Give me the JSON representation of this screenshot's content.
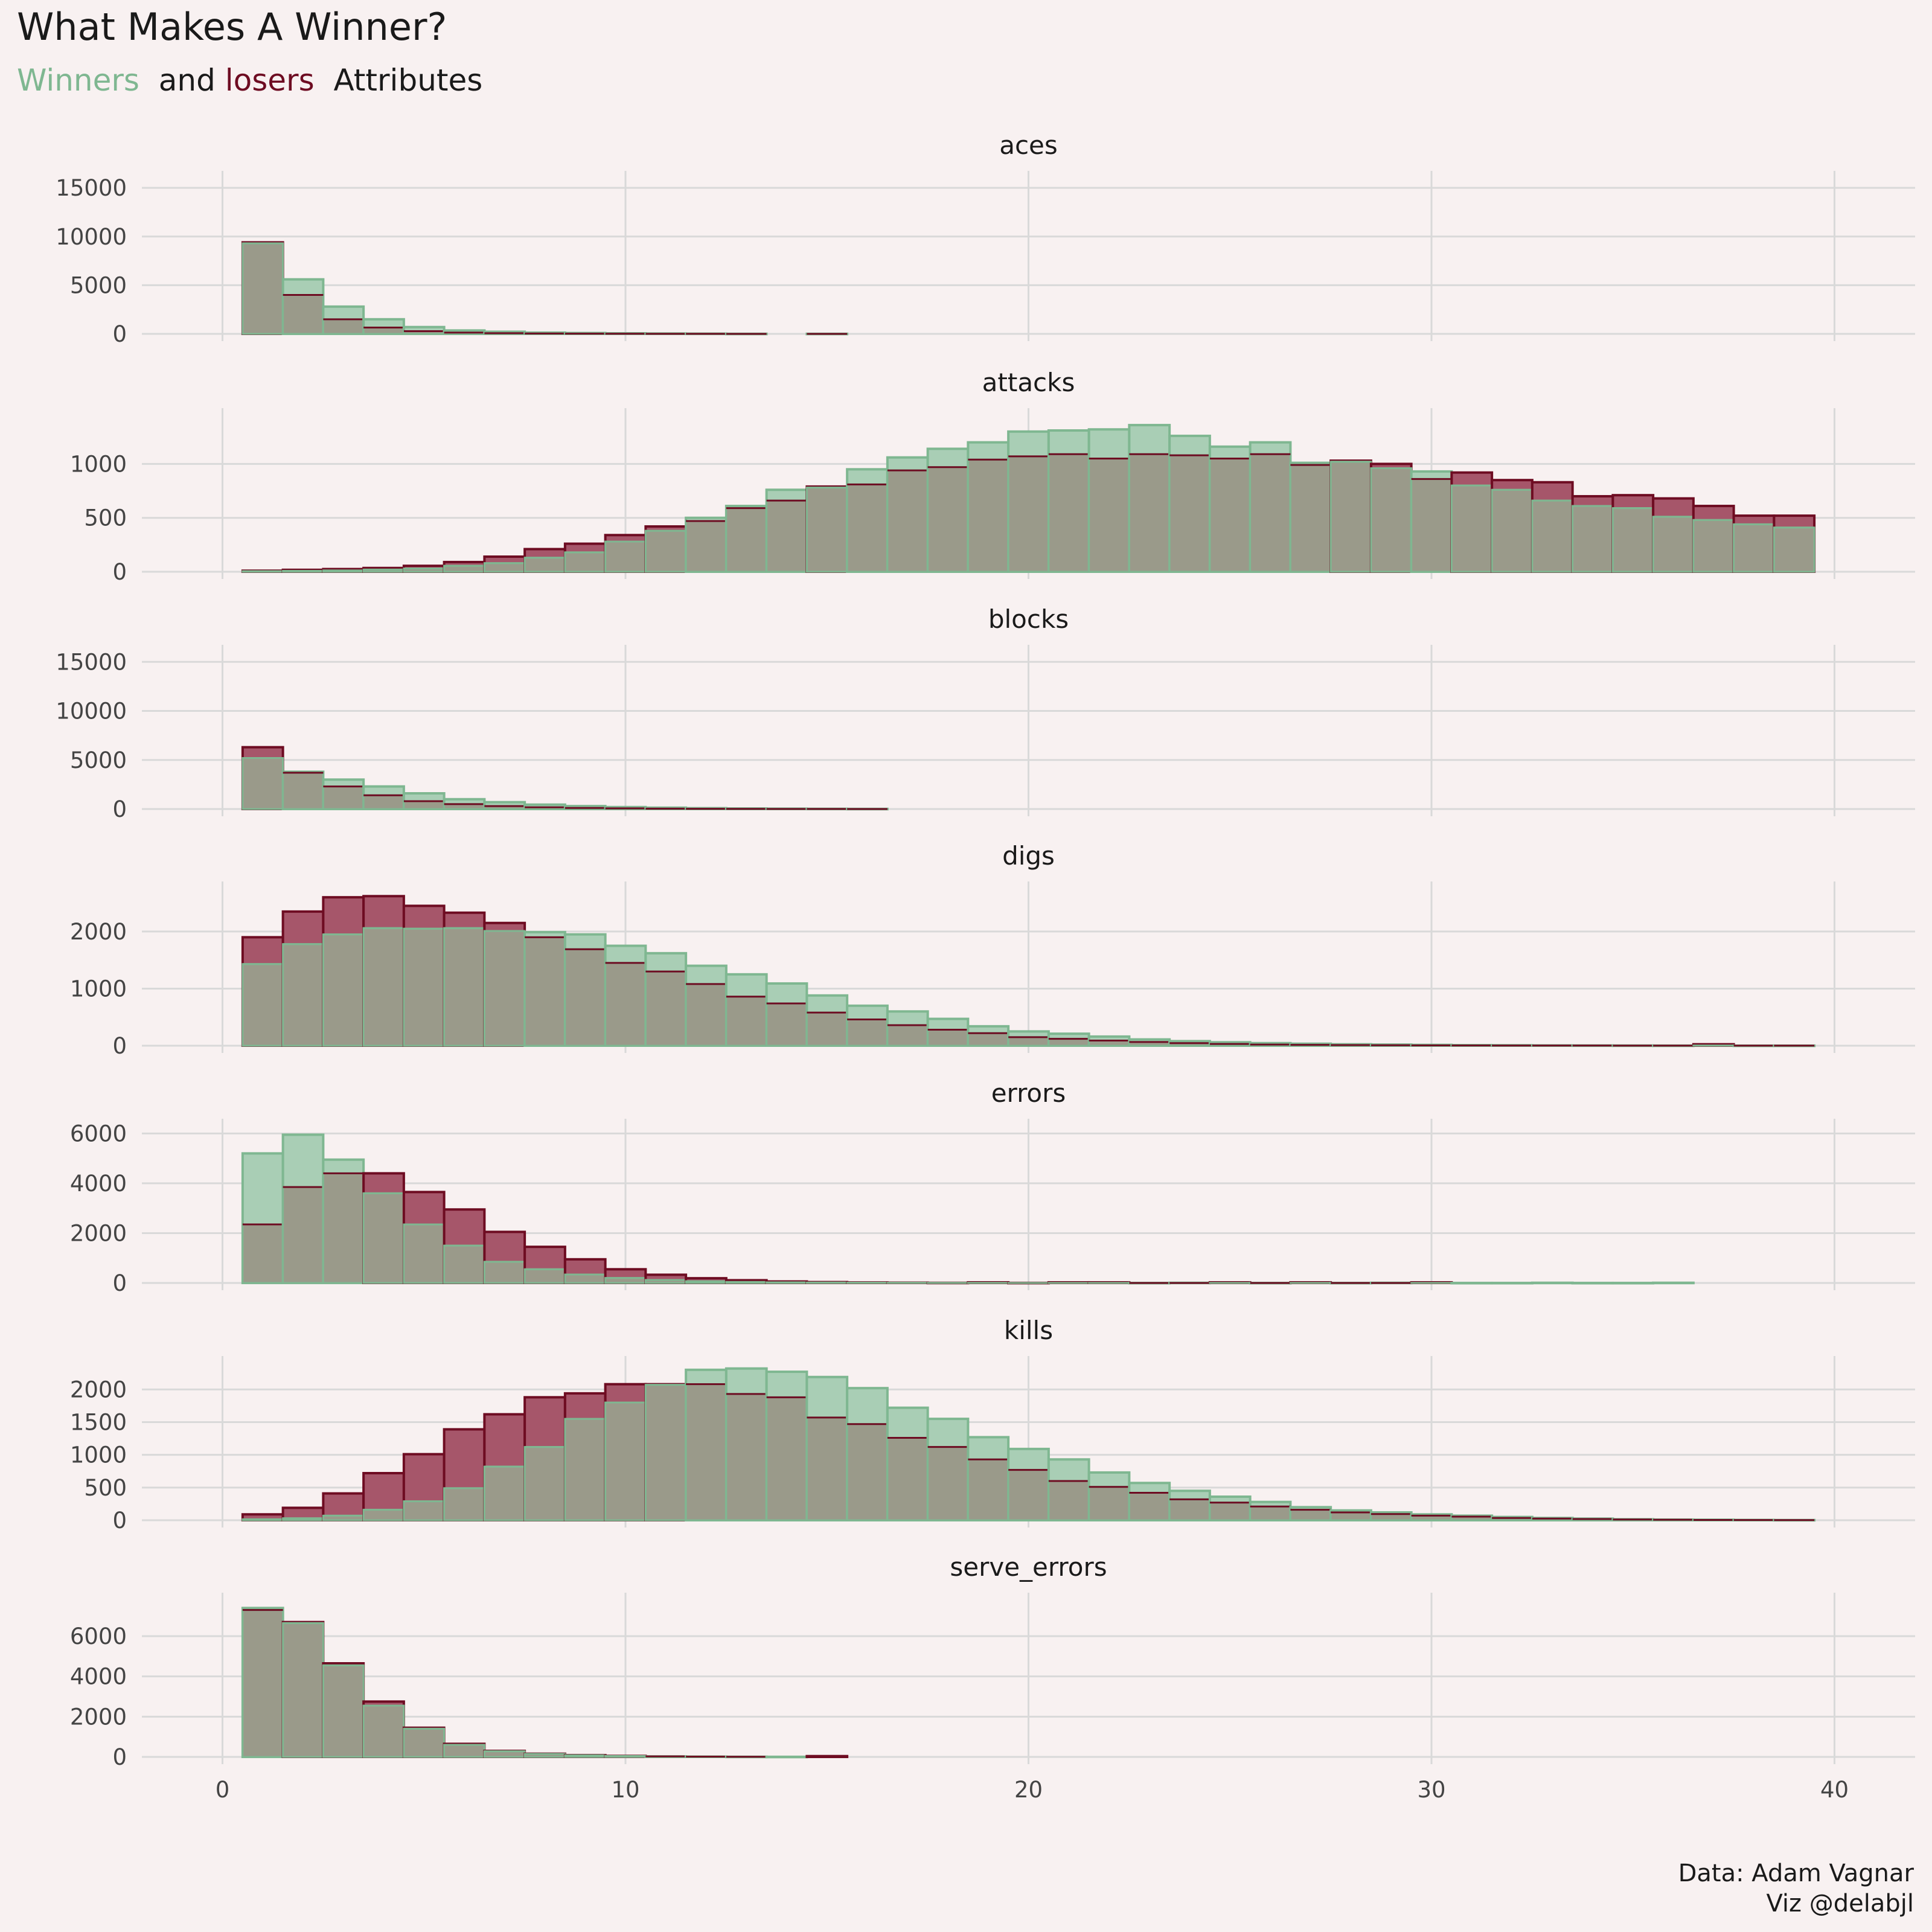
{
  "title": "What Makes A Winner?",
  "subtitle": {
    "winners_word": "Winners",
    "and_word": "and",
    "losers_word": "losers",
    "attributes_word": "Attributes"
  },
  "caption": {
    "line1": "Data: Adam Vagnar",
    "line2": "Viz @delabjl"
  },
  "colors": {
    "background": "#f8f1f1",
    "winners": "#7fb791",
    "winners_fill": "#a9ceb5",
    "losers": "#6e0c22",
    "losers_fill": "#a6566a",
    "overlap_fill": "#9a9a8a",
    "grid": "#d9d9d9"
  },
  "chart_data": {
    "type": "bar",
    "layout": "facets stacked vertically, shared x axis",
    "binwidth": 1,
    "x_range": [
      -2,
      42
    ],
    "x_ticks": [
      0,
      10,
      20,
      30,
      40
    ],
    "grid": true,
    "legend": "none",
    "bins_x_start": 1,
    "facets": [
      {
        "name": "aces",
        "ylim": [
          0,
          16000
        ],
        "y_ticks": [
          0,
          5000,
          10000,
          15000
        ],
        "series": [
          {
            "name": "Winners",
            "values": [
              9300,
              5600,
              2800,
              1500,
              700,
              350,
              220,
              130,
              90,
              60,
              40,
              25,
              10,
              0,
              8
            ]
          },
          {
            "name": "losers",
            "values": [
              9400,
              4000,
              1500,
              650,
              280,
              130,
              70,
              40,
              25,
              15,
              10,
              5,
              2,
              0,
              2
            ]
          }
        ]
      },
      {
        "name": "attacks",
        "ylim": [
          0,
          1450
        ],
        "y_ticks": [
          0,
          500,
          1000
        ],
        "series": [
          {
            "name": "Winners",
            "values": [
              5,
              8,
              12,
              20,
              30,
              55,
              80,
              130,
              180,
              280,
              380,
              500,
              610,
              760,
              780,
              950,
              1060,
              1140,
              1200,
              1300,
              1310,
              1320,
              1360,
              1260,
              1160,
              1200,
              1010,
              1020,
              960,
              930,
              800,
              760,
              660,
              610,
              590,
              510,
              480,
              440,
              410
            ]
          },
          {
            "name": "losers",
            "values": [
              10,
              18,
              25,
              35,
              55,
              90,
              140,
              210,
              260,
              340,
              420,
              470,
              590,
              660,
              790,
              810,
              940,
              970,
              1040,
              1070,
              1090,
              1050,
              1090,
              1080,
              1050,
              1090,
              990,
              1030,
              1000,
              860,
              920,
              850,
              830,
              700,
              710,
              680,
              610,
              520,
              520
            ]
          }
        ]
      },
      {
        "name": "blocks",
        "ylim": [
          0,
          16000
        ],
        "y_ticks": [
          0,
          5000,
          10000,
          15000
        ],
        "series": [
          {
            "name": "Winners",
            "values": [
              5200,
              3800,
              3000,
              2300,
              1600,
              1000,
              700,
              450,
              300,
              200,
              140,
              90,
              60,
              40,
              25,
              15
            ]
          },
          {
            "name": "losers",
            "values": [
              6300,
              3700,
              2300,
              1400,
              800,
              500,
              300,
              180,
              110,
              70,
              40,
              25,
              15,
              8,
              5,
              2
            ]
          }
        ]
      },
      {
        "name": "digs",
        "ylim": [
          0,
          2750
        ],
        "y_ticks": [
          0,
          1000,
          2000
        ],
        "series": [
          {
            "name": "Winners",
            "values": [
              1430,
              1780,
              1950,
              2060,
              2050,
              2060,
              2010,
              1990,
              1950,
              1750,
              1620,
              1400,
              1250,
              1090,
              880,
              700,
              600,
              470,
              340,
              250,
              210,
              160,
              110,
              80,
              60,
              45,
              35,
              25,
              20,
              15,
              10,
              8,
              5,
              4,
              3,
              2,
              2,
              1,
              1
            ]
          },
          {
            "name": "losers",
            "values": [
              1900,
              2350,
              2600,
              2620,
              2450,
              2330,
              2150,
              1900,
              1690,
              1450,
              1300,
              1080,
              860,
              740,
              580,
              460,
              360,
              280,
              220,
              150,
              120,
              90,
              65,
              45,
              30,
              20,
              15,
              10,
              8,
              5,
              4,
              3,
              2,
              2,
              1,
              1,
              25,
              1,
              1
            ]
          }
        ]
      },
      {
        "name": "errors",
        "ylim": [
          0,
          6300
        ],
        "y_ticks": [
          0,
          2000,
          4000,
          6000
        ],
        "series": [
          {
            "name": "Winners",
            "values": [
              5200,
              5950,
              4950,
              3600,
              2350,
              1500,
              850,
              550,
              340,
              200,
              120,
              70,
              40,
              25,
              15,
              8,
              5,
              3,
              2,
              1,
              1,
              1,
              1,
              8,
              1,
              1,
              1,
              1,
              8,
              1,
              1,
              1,
              8,
              1,
              1,
              8
            ]
          },
          {
            "name": "losers",
            "values": [
              2350,
              3850,
              4400,
              4400,
              3650,
              2950,
              2050,
              1450,
              950,
              550,
              330,
              190,
              110,
              60,
              35,
              20,
              12,
              6,
              25,
              3,
              25,
              25,
              1,
              1,
              25,
              1,
              25,
              1,
              1,
              25
            ]
          }
        ]
      },
      {
        "name": "kills",
        "ylim": [
          0,
          2400
        ],
        "y_ticks": [
          0,
          500,
          1000,
          1500,
          2000
        ],
        "series": [
          {
            "name": "Winners",
            "values": [
              15,
              30,
              70,
              160,
              290,
              490,
              820,
              1120,
              1550,
              1800,
              2070,
              2300,
              2320,
              2270,
              2190,
              2020,
              1720,
              1550,
              1270,
              1090,
              930,
              730,
              570,
              450,
              360,
              280,
              200,
              150,
              120,
              90,
              70,
              50,
              35,
              25,
              15,
              10,
              8,
              5,
              3
            ]
          },
          {
            "name": "losers",
            "values": [
              90,
              190,
              410,
              720,
              1010,
              1390,
              1620,
              1880,
              1940,
              2080,
              2080,
              2080,
              1930,
              1880,
              1570,
              1470,
              1260,
              1120,
              930,
              770,
              600,
              510,
              420,
              320,
              270,
              210,
              160,
              120,
              95,
              70,
              55,
              35,
              25,
              18,
              12,
              8,
              5,
              3,
              2
            ]
          }
        ]
      },
      {
        "name": "serve_errors",
        "ylim": [
          0,
          7800
        ],
        "y_ticks": [
          0,
          2000,
          4000,
          6000
        ],
        "series": [
          {
            "name": "Winners",
            "values": [
              7400,
              6650,
              4550,
              2550,
              1400,
              600,
              280,
              150,
              80,
              45,
              25,
              15,
              8,
              5,
              0
            ]
          },
          {
            "name": "losers",
            "values": [
              7300,
              6700,
              4650,
              2750,
              1450,
              650,
              300,
              160,
              90,
              50,
              25,
              15,
              8,
              0,
              40
            ]
          }
        ]
      }
    ]
  }
}
